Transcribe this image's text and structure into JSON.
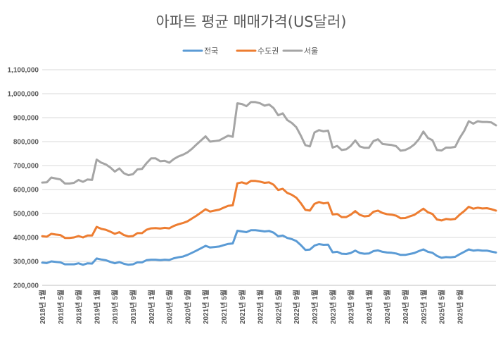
{
  "chart_data": {
    "type": "line",
    "title": "아파트 평균 매매가격(US달러)",
    "xlabel": "",
    "ylabel": "",
    "ylim": [
      200000,
      1100000
    ],
    "y_ticks": [
      200000,
      300000,
      400000,
      500000,
      600000,
      700000,
      800000,
      900000,
      1000000,
      1100000
    ],
    "y_tick_labels": [
      "200,000",
      "300,000",
      "400,000",
      "500,000",
      "600,000",
      "700,000",
      "800,000",
      "900,000",
      "1,000,000",
      "1,100,000"
    ],
    "x_tick_labels": [
      "2018년 1월",
      "2018년 5월",
      "2018년 9월",
      "2019년 1월",
      "2019년 5월",
      "2019년 9월",
      "2020년 1월",
      "2020년 5월",
      "2020년 9월",
      "2021년 1월",
      "2021년 5월",
      "2021년 9월",
      "2022년 1월",
      "2022년 5월",
      "2022년 9월",
      "2023년 1월",
      "2023년 5월",
      "2023년 9월",
      "2024년 1월",
      "2024년 5월",
      "2024년 9월",
      "2025년 1월",
      "2025년 5월",
      "2025년 9월"
    ],
    "legend_position": "top-center",
    "series": [
      {
        "name": "전국",
        "color": "#5b9bd5",
        "values": [
          295000,
          293000,
          300000,
          298000,
          296000,
          288000,
          288000,
          288000,
          292000,
          286000,
          292000,
          291000,
          312000,
          308000,
          305000,
          298000,
          292000,
          297000,
          290000,
          286000,
          288000,
          296000,
          296000,
          305000,
          307000,
          307000,
          305000,
          307000,
          306000,
          313000,
          317000,
          320000,
          327000,
          336000,
          345000,
          355000,
          365000,
          358000,
          360000,
          362000,
          368000,
          373000,
          375000,
          428000,
          425000,
          422000,
          430000,
          430000,
          428000,
          425000,
          427000,
          420000,
          405000,
          408000,
          398000,
          393000,
          385000,
          368000,
          348000,
          349000,
          366000,
          372000,
          369000,
          370000,
          338000,
          340000,
          332000,
          331000,
          335000,
          345000,
          335000,
          332000,
          333000,
          343000,
          346000,
          340000,
          337000,
          336000,
          333000,
          327000,
          327000,
          331000,
          335000,
          343000,
          350000,
          340000,
          336000,
          323000,
          315000,
          318000,
          317000,
          319000,
          330000,
          340000,
          350000,
          345000,
          347000,
          345000,
          345000,
          341000,
          337000
        ]
      },
      {
        "name": "수도권",
        "color": "#ed7d31",
        "values": [
          405000,
          403000,
          415000,
          412000,
          410000,
          398000,
          398000,
          400000,
          406000,
          400000,
          408000,
          408000,
          444000,
          436000,
          432000,
          424000,
          415000,
          422000,
          410000,
          404000,
          406000,
          418000,
          418000,
          432000,
          438000,
          439000,
          437000,
          440000,
          438000,
          448000,
          455000,
          460000,
          467000,
          479000,
          491000,
          504000,
          518000,
          508000,
          512000,
          516000,
          524000,
          532000,
          534000,
          626000,
          630000,
          624000,
          636000,
          636000,
          633000,
          628000,
          630000,
          620000,
          598000,
          603000,
          586000,
          578000,
          566000,
          543000,
          515000,
          512000,
          540000,
          548000,
          542000,
          545000,
          496000,
          498000,
          485000,
          485000,
          495000,
          510000,
          494000,
          488000,
          490000,
          507000,
          512000,
          502000,
          497000,
          495000,
          491000,
          480000,
          481000,
          488000,
          494000,
          507000,
          520000,
          505000,
          498000,
          475000,
          471000,
          477000,
          475000,
          477000,
          495000,
          510000,
          528000,
          520000,
          524000,
          521000,
          522000,
          518000,
          512000
        ]
      },
      {
        "name": "서울",
        "color": "#a5a5a5",
        "values": [
          629000,
          630000,
          650000,
          646000,
          642000,
          625000,
          625000,
          628000,
          640000,
          632000,
          642000,
          640000,
          725000,
          712000,
          705000,
          692000,
          675000,
          688000,
          668000,
          660000,
          664000,
          684000,
          686000,
          710000,
          730000,
          730000,
          718000,
          720000,
          712000,
          727000,
          738000,
          745000,
          755000,
          770000,
          788000,
          805000,
          822000,
          800000,
          802000,
          805000,
          815000,
          825000,
          820000,
          960000,
          957000,
          948000,
          965000,
          965000,
          960000,
          950000,
          955000,
          940000,
          910000,
          918000,
          890000,
          878000,
          860000,
          825000,
          785000,
          780000,
          838000,
          848000,
          843000,
          846000,
          775000,
          782000,
          765000,
          768000,
          782000,
          805000,
          780000,
          774000,
          774000,
          802000,
          810000,
          790000,
          788000,
          786000,
          781000,
          762000,
          765000,
          774000,
          788000,
          810000,
          842000,
          815000,
          806000,
          765000,
          763000,
          775000,
          775000,
          778000,
          815000,
          845000,
          885000,
          875000,
          885000,
          882000,
          882000,
          880000,
          868000
        ]
      }
    ]
  }
}
